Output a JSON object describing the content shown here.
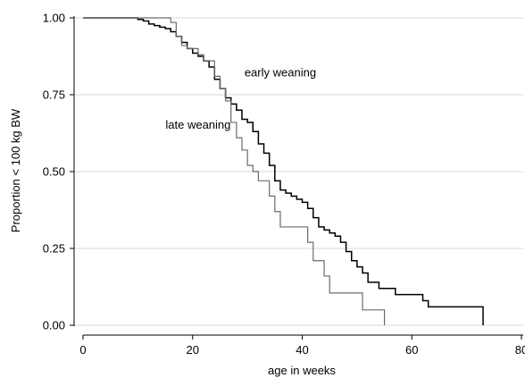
{
  "chart_data": {
    "type": "line",
    "title": "",
    "xlabel": "age in weeks",
    "ylabel": "Proportion < 100 kg BW",
    "xlim": [
      0,
      80
    ],
    "ylim": [
      0,
      1
    ],
    "xticks": [
      0,
      20,
      40,
      60,
      80
    ],
    "yticks": [
      0.0,
      0.25,
      0.5,
      0.75,
      1.0
    ],
    "ytick_labels": [
      "0.00",
      "0.25",
      "0.50",
      "0.75",
      "1.00"
    ],
    "grid": true,
    "legend": "none",
    "step": true,
    "series": [
      {
        "name": "early weaning",
        "color": "#000000",
        "x": [
          0,
          10,
          11,
          12,
          13,
          14,
          15,
          16,
          17,
          18,
          19,
          20,
          21,
          22,
          23,
          24,
          25,
          26,
          27,
          28,
          29,
          30,
          31,
          32,
          33,
          34,
          35,
          36,
          37,
          38,
          39,
          40,
          41,
          42,
          43,
          44,
          45,
          46,
          47,
          48,
          49,
          50,
          51,
          52,
          54,
          57,
          62,
          63,
          72,
          73
        ],
        "y": [
          1.0,
          0.995,
          0.99,
          0.98,
          0.975,
          0.97,
          0.965,
          0.955,
          0.94,
          0.92,
          0.9,
          0.885,
          0.875,
          0.86,
          0.84,
          0.8,
          0.77,
          0.74,
          0.72,
          0.7,
          0.67,
          0.66,
          0.63,
          0.59,
          0.56,
          0.52,
          0.47,
          0.44,
          0.43,
          0.42,
          0.41,
          0.4,
          0.38,
          0.35,
          0.32,
          0.31,
          0.3,
          0.29,
          0.27,
          0.24,
          0.21,
          0.19,
          0.17,
          0.14,
          0.12,
          0.1,
          0.08,
          0.06,
          0.06,
          0.0
        ]
      },
      {
        "name": "late weaning",
        "color": "#6b6b6b",
        "x": [
          0,
          16,
          17,
          18,
          19,
          21,
          22,
          24,
          25,
          26,
          27,
          28,
          29,
          30,
          31,
          32,
          34,
          35,
          36,
          41,
          42,
          44,
          45,
          51,
          55
        ],
        "y": [
          1.0,
          0.985,
          0.94,
          0.91,
          0.9,
          0.88,
          0.86,
          0.81,
          0.77,
          0.73,
          0.66,
          0.61,
          0.57,
          0.52,
          0.5,
          0.47,
          0.42,
          0.37,
          0.32,
          0.27,
          0.21,
          0.16,
          0.105,
          0.05,
          0.0
        ]
      }
    ],
    "annotations": [
      {
        "text": "early weaning",
        "x": 36,
        "y": 0.81
      },
      {
        "text": "late weaning",
        "x": 21,
        "y": 0.64
      }
    ]
  }
}
